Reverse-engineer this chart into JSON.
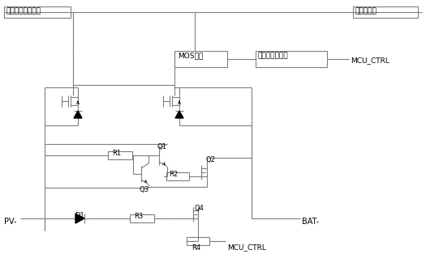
{
  "bg_color": "#ffffff",
  "line_color": "#7f7f7f",
  "lw": 0.8,
  "labels": {
    "pv_plus": "太阳能电池板正极",
    "bat_plus": "蓄电池正极",
    "mos_driver": "MOS驱动",
    "mcu_unit": "单片机控制单元",
    "mcu_ctrl": "MCU_CTRL",
    "pv_minus": "PV-",
    "bat_minus": "BAT-",
    "d1": "D1",
    "r1": "R1",
    "r2": "R2",
    "r3": "R3",
    "r4": "R4",
    "q1": "Q1",
    "q2": "Q2",
    "q3": "Q3",
    "q4": "Q4"
  }
}
